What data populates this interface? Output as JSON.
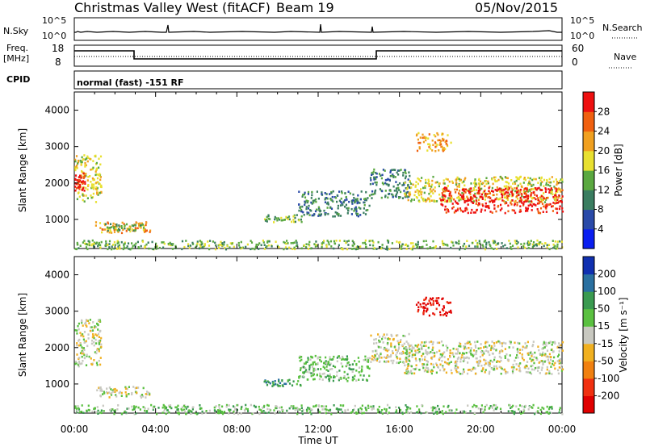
{
  "header": {
    "station": "Christmas Valley West (fitACF)",
    "beam": "Beam 19",
    "date": "05/Nov/2015"
  },
  "status_panel": {
    "nsky_label": "N.Sky",
    "nsky_ticks": [
      "10^5",
      "10^0"
    ],
    "nsearch_label": "N.Search",
    "freq_label_1": "Freq.",
    "freq_label_2": "[MHz]",
    "freq_ticks": [
      "18",
      "8"
    ],
    "nave_label": "Nave",
    "nave_ticks": [
      "60",
      "0"
    ],
    "cpid_label": "CPID",
    "cpid_text": "normal (fast) -151 RF"
  },
  "time_axis": {
    "label": "Time UT",
    "ticks": [
      "00:00",
      "04:00",
      "08:00",
      "12:00",
      "16:00",
      "20:00",
      "00:00"
    ]
  },
  "chart_data": [
    {
      "type": "heatmap",
      "name": "power",
      "ylabel": "Slant Range [km]",
      "yticks": [
        "1000",
        "2000",
        "3000",
        "4000"
      ],
      "ylim": [
        200,
        4500
      ],
      "xlim": [
        0,
        24
      ],
      "colorbar": {
        "label": "Power [dB]",
        "ticks": [
          "4",
          "8",
          "12",
          "16",
          "20",
          "24",
          "28"
        ],
        "colors": [
          "#0a1ef0",
          "#2a4aa8",
          "#3a7d60",
          "#5aa840",
          "#e8e030",
          "#f0a020",
          "#f06010",
          "#ee1010"
        ]
      },
      "regions": [
        {
          "t0": 0.0,
          "t1": 1.3,
          "r0": 1500,
          "r1": 2800,
          "level": 4
        },
        {
          "t0": 0.0,
          "t1": 0.5,
          "r0": 1800,
          "r1": 2300,
          "level": 7
        },
        {
          "t0": 1.0,
          "t1": 3.7,
          "r0": 650,
          "r1": 950,
          "level": 5
        },
        {
          "t0": 1.5,
          "t1": 3.5,
          "r0": 700,
          "r1": 900,
          "level": 3
        },
        {
          "t0": 9.3,
          "t1": 11.2,
          "r0": 950,
          "r1": 1150,
          "level": 3
        },
        {
          "t0": 11.0,
          "t1": 14.5,
          "r0": 1100,
          "r1": 1800,
          "level": 2
        },
        {
          "t0": 14.5,
          "t1": 16.5,
          "r0": 1600,
          "r1": 2400,
          "level": 2
        },
        {
          "t0": 16.8,
          "t1": 18.5,
          "r0": 2900,
          "r1": 3400,
          "level": 5
        },
        {
          "t0": 16.2,
          "t1": 24.0,
          "r0": 1500,
          "r1": 2200,
          "level": 4
        },
        {
          "t0": 18.0,
          "t1": 24.0,
          "r0": 1200,
          "r1": 1900,
          "level": 7
        },
        {
          "t0": 0.0,
          "t1": 24.0,
          "r0": 200,
          "r1": 450,
          "level": 3
        }
      ]
    },
    {
      "type": "heatmap",
      "name": "velocity",
      "ylabel": "Slant Range [km]",
      "yticks": [
        "1000",
        "2000",
        "3000",
        "4000"
      ],
      "ylim": [
        200,
        4500
      ],
      "xlim": [
        0,
        24
      ],
      "colorbar": {
        "label": "Velocity [m s⁻¹]",
        "ticks": [
          "200",
          "100",
          "50",
          "15",
          "-15",
          "-50",
          "-100",
          "-200"
        ],
        "colors": [
          "#1030b0",
          "#2a70a0",
          "#3a9a50",
          "#5ac040",
          "#c8c8c0",
          "#f0b020",
          "#f08010",
          "#f03010",
          "#e00000"
        ]
      },
      "regions": [
        {
          "t0": 0.0,
          "t1": 1.3,
          "r0": 1500,
          "r1": 2800,
          "level": 4
        },
        {
          "t0": 1.0,
          "t1": 3.7,
          "r0": 650,
          "r1": 950,
          "level": 4
        },
        {
          "t0": 9.3,
          "t1": 11.2,
          "r0": 950,
          "r1": 1150,
          "level": 2
        },
        {
          "t0": 11.0,
          "t1": 14.5,
          "r0": 1100,
          "r1": 1800,
          "level": 3
        },
        {
          "t0": 14.5,
          "t1": 16.5,
          "r0": 1600,
          "r1": 2400,
          "level": 4
        },
        {
          "t0": 16.8,
          "t1": 18.5,
          "r0": 2900,
          "r1": 3400,
          "level": 8
        },
        {
          "t0": 16.2,
          "t1": 24.0,
          "r0": 1300,
          "r1": 2200,
          "level": 4
        },
        {
          "t0": 0.0,
          "t1": 24.0,
          "r0": 200,
          "r1": 450,
          "level": 3
        }
      ]
    }
  ]
}
